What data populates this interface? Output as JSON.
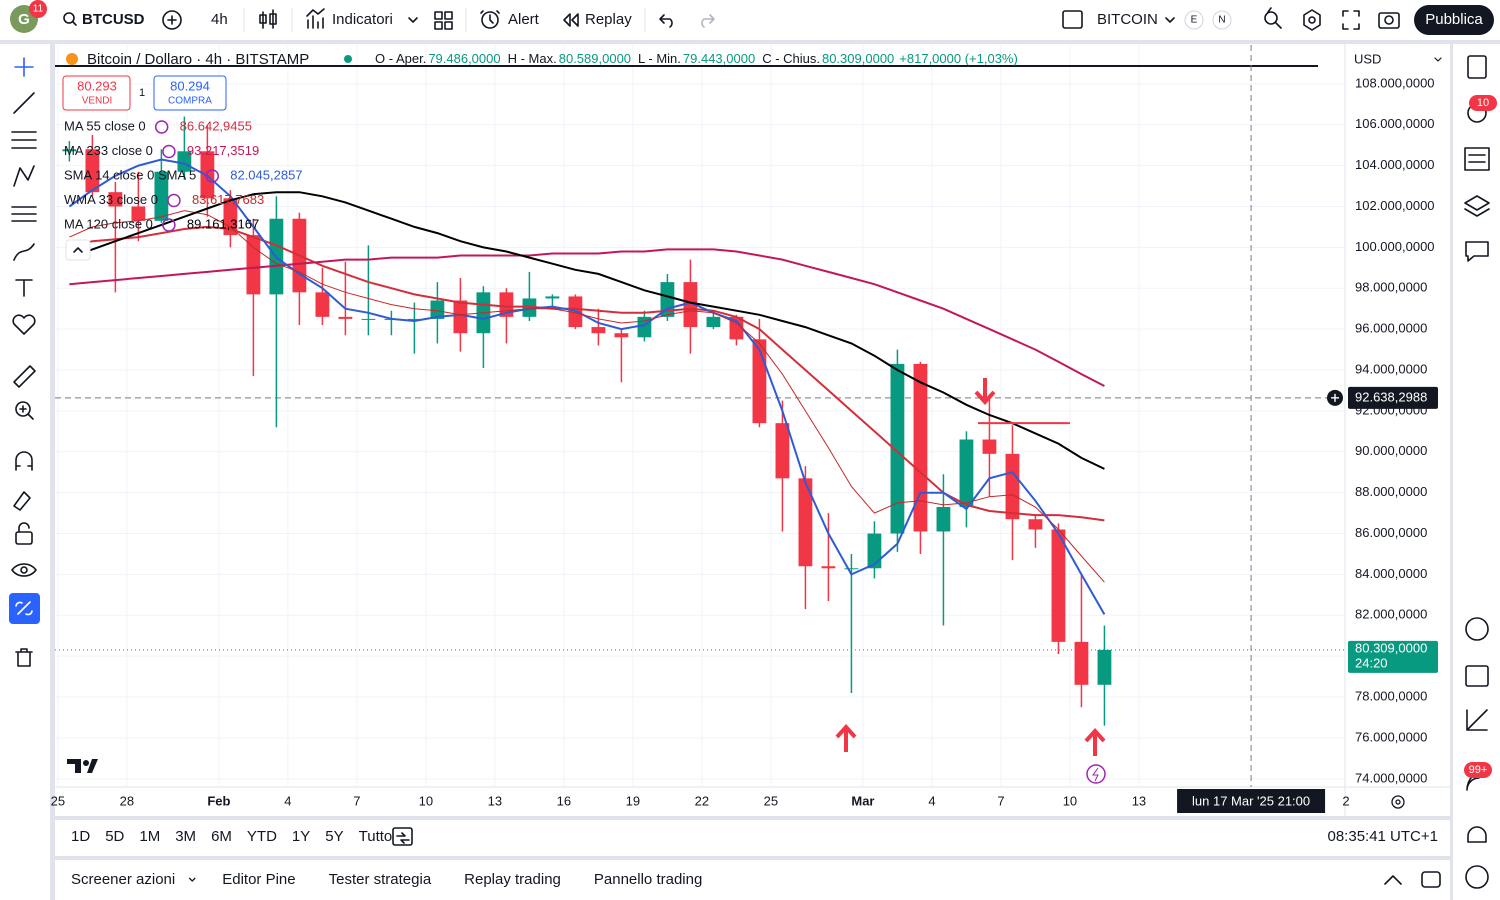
{
  "toolbar": {
    "avatar_badge": "11",
    "symbol": "BTCUSD",
    "interval": "4h",
    "indicators": "Indicatori",
    "alert": "Alert",
    "replay": "Replay",
    "watchlist": "BITCOIN",
    "e": "E",
    "n": "N",
    "publish": "Pubblica"
  },
  "legend": {
    "title": "Bitcoin / Dollaro · 4h · BITSTAMP",
    "ohlc": [
      {
        "label": "O - Aper.",
        "value": "79.486,0000"
      },
      {
        "label": "H - Max.",
        "value": "80.589,0000"
      },
      {
        "label": "L - Min.",
        "value": "79.443,0000"
      },
      {
        "label": "C - Chius.",
        "value": "80.309,0000"
      }
    ],
    "change": "+817,0000 (+1,03%)"
  },
  "trade": {
    "sell_price": "80.293",
    "sell": "VENDI",
    "spread": "1",
    "buy_price": "80.294",
    "buy": "COMPRA"
  },
  "chart_data": {
    "type": "candlestick",
    "currency": "USD",
    "xlim": [
      "2025-01-24T21:00",
      "2025-03-21T23:00"
    ],
    "ylim": [
      73600,
      109900
    ],
    "grid": true,
    "up_color": "#089981",
    "down_color": "#f23645",
    "x": [
      "2025-01-25",
      "2025-01-26",
      "2025-01-27",
      "2025-01-28",
      "2025-01-29",
      "2025-01-30",
      "2025-01-31",
      "2025-02-01",
      "2025-02-02",
      "2025-02-03",
      "2025-02-04",
      "2025-02-05",
      "2025-02-06",
      "2025-02-07",
      "2025-02-08",
      "2025-02-09",
      "2025-02-10",
      "2025-02-11",
      "2025-02-12",
      "2025-02-13",
      "2025-02-14",
      "2025-02-15",
      "2025-02-16",
      "2025-02-17",
      "2025-02-18",
      "2025-02-19",
      "2025-02-20",
      "2025-02-21",
      "2025-02-22",
      "2025-02-23",
      "2025-02-24",
      "2025-02-25",
      "2025-02-26",
      "2025-02-27",
      "2025-02-28",
      "2025-03-01",
      "2025-03-02",
      "2025-03-03",
      "2025-03-04",
      "2025-03-05",
      "2025-03-06",
      "2025-03-07",
      "2025-03-08",
      "2025-03-09",
      "2025-03-10",
      "2025-03-11"
    ],
    "open": [
      104700,
      104800,
      102700,
      102000,
      101300,
      103700,
      104700,
      102400,
      100600,
      97700,
      101400,
      97800,
      96600,
      96500,
      96500,
      96500,
      96500,
      97400,
      95800,
      97800,
      96600,
      97500,
      97600,
      96100,
      95800,
      95600,
      96600,
      98300,
      96100,
      96600,
      95500,
      91400,
      88700,
      84400,
      84300,
      84300,
      86000,
      94300,
      86100,
      87300,
      90600,
      89900,
      86700,
      86200,
      80700,
      78600
    ],
    "high": [
      105200,
      105500,
      103200,
      103700,
      104800,
      106400,
      106000,
      102800,
      101400,
      102500,
      101700,
      99000,
      99300,
      100100,
      96900,
      97300,
      98300,
      98500,
      98100,
      98000,
      98800,
      97700,
      97700,
      97000,
      96000,
      96900,
      98700,
      99400,
      96900,
      96700,
      96500,
      92500,
      89300,
      87000,
      85000,
      86600,
      95000,
      94400,
      88900,
      91000,
      92800,
      91300,
      86900,
      86500,
      84000,
      81500
    ],
    "low": [
      104200,
      102500,
      97800,
      100300,
      101200,
      103300,
      101500,
      100000,
      93700,
      91200,
      96200,
      96200,
      95700,
      95700,
      95700,
      94800,
      95300,
      94900,
      94100,
      95300,
      96400,
      97000,
      96000,
      95200,
      93400,
      95400,
      96400,
      94800,
      96000,
      95200,
      91200,
      86100,
      82300,
      82700,
      78200,
      83800,
      85100,
      85000,
      81500,
      86300,
      87800,
      84700,
      85300,
      80100,
      77500,
      76600
    ],
    "close": [
      104800,
      102700,
      102000,
      101300,
      103700,
      104700,
      102400,
      100600,
      97700,
      101400,
      97800,
      96600,
      96500,
      96500,
      96500,
      96500,
      97400,
      95800,
      97800,
      96600,
      97500,
      97600,
      96100,
      95800,
      95600,
      96600,
      98300,
      96100,
      96600,
      95500,
      91400,
      88700,
      84400,
      84300,
      84300,
      86000,
      94300,
      86100,
      87300,
      90600,
      89900,
      86700,
      86200,
      80700,
      78600,
      80309
    ],
    "series": [
      {
        "name": "MA 55 close 0",
        "legend_value": "86.642,9455",
        "color": "#d32f3a",
        "line_width": 2,
        "values": [
          100000,
          100300,
          100400,
          100500,
          100700,
          100900,
          101000,
          100900,
          100500,
          100100,
          99600,
          99100,
          98700,
          98300,
          98000,
          97700,
          97500,
          97300,
          97200,
          97100,
          97100,
          97000,
          97000,
          96900,
          96800,
          96800,
          96900,
          97000,
          96900,
          96600,
          96000,
          95000,
          94000,
          93000,
          92000,
          91000,
          90000,
          89000,
          88000,
          87400,
          87100,
          87000,
          86900,
          86900,
          86800,
          86643
        ]
      },
      {
        "name": "MA 233 close 0",
        "legend_value": "93.217,3519",
        "color": "#c2185b",
        "line_width": 2,
        "values": [
          98200,
          98300,
          98400,
          98500,
          98600,
          98700,
          98800,
          98900,
          99000,
          99100,
          99200,
          99300,
          99400,
          99400,
          99500,
          99500,
          99500,
          99600,
          99600,
          99600,
          99600,
          99700,
          99700,
          99700,
          99800,
          99800,
          99900,
          99900,
          99900,
          99800,
          99600,
          99400,
          99100,
          98800,
          98500,
          98200,
          97800,
          97400,
          97000,
          96500,
          96000,
          95500,
          95000,
          94400,
          93800,
          93217
        ]
      },
      {
        "name": "SMA 14 close 0 SMA 5",
        "legend_value": "82.045,2857",
        "color": "#2f5bd3",
        "line_width": 2,
        "values": [
          102000,
          102800,
          103500,
          104000,
          104300,
          104100,
          103500,
          102500,
          101000,
          99500,
          98700,
          98000,
          97000,
          96800,
          96500,
          96400,
          96600,
          96700,
          96500,
          96800,
          97000,
          97100,
          96900,
          96300,
          96000,
          96200,
          97000,
          97300,
          96800,
          96400,
          95000,
          92000,
          88500,
          86000,
          84000,
          84500,
          85500,
          88000,
          88000,
          87200,
          88700,
          89000,
          87600,
          86000,
          84000,
          82046
        ]
      },
      {
        "name": "WMA 33 close 0",
        "legend_value": "83.617,7683",
        "color": "#c62828",
        "line_width": 1,
        "values": [
          100500,
          101000,
          101200,
          101300,
          101500,
          101800,
          101600,
          101000,
          100000,
          99200,
          98800,
          98200,
          97800,
          97500,
          97200,
          97000,
          96900,
          96700,
          96800,
          96900,
          97000,
          97000,
          96800,
          96500,
          96300,
          96400,
          96700,
          96900,
          96800,
          96300,
          95300,
          93800,
          92000,
          90200,
          88300,
          87000,
          87500,
          87600,
          87400,
          87500,
          87800,
          87900,
          87300,
          86200,
          84900,
          83618
        ]
      },
      {
        "name": "MA 120 close 0",
        "legend_value": "89.161,3167",
        "color": "#000000",
        "line_width": 2,
        "values": [
          99500,
          99900,
          100300,
          100700,
          101100,
          101500,
          101900,
          102300,
          102600,
          102700,
          102700,
          102500,
          102200,
          101800,
          101400,
          101000,
          100700,
          100300,
          100000,
          99800,
          99500,
          99200,
          98900,
          98700,
          98300,
          97900,
          97600,
          97300,
          97100,
          96900,
          96700,
          96400,
          96100,
          95700,
          95300,
          94700,
          94000,
          93400,
          92900,
          92300,
          91800,
          91400,
          90900,
          90400,
          89700,
          89161
        ]
      }
    ],
    "yticks": [
      {
        "value": 74000,
        "label": "74.000,0000"
      },
      {
        "value": 76000,
        "label": "76.000,0000"
      },
      {
        "value": 78000,
        "label": "78.000,0000"
      },
      {
        "value": 80000,
        "label": "80.000,0000"
      },
      {
        "value": 82000,
        "label": "82.000,0000"
      },
      {
        "value": 84000,
        "label": "84.000,0000"
      },
      {
        "value": 86000,
        "label": "86.000,0000"
      },
      {
        "value": 88000,
        "label": "88.000,0000"
      },
      {
        "value": 90000,
        "label": "90.000,0000"
      },
      {
        "value": 92000,
        "label": "92.000,0000"
      },
      {
        "value": 94000,
        "label": "94.000,0000"
      },
      {
        "value": 96000,
        "label": "96.000,0000"
      },
      {
        "value": 98000,
        "label": "98.000,0000"
      },
      {
        "value": 100000,
        "label": "100.000,0000"
      },
      {
        "value": 102000,
        "label": "102.000,0000"
      },
      {
        "value": 104000,
        "label": "104.000,0000"
      },
      {
        "value": 106000,
        "label": "106.000,0000"
      },
      {
        "value": 108000,
        "label": "108.000,0000"
      }
    ],
    "xticks": [
      {
        "value": "2025-01-25",
        "label": "25"
      },
      {
        "value": "2025-01-28",
        "label": "28"
      },
      {
        "value": "2025-02-01",
        "label": "Feb"
      },
      {
        "value": "2025-02-04",
        "label": "4"
      },
      {
        "value": "2025-02-07",
        "label": "7"
      },
      {
        "value": "2025-02-10",
        "label": "10"
      },
      {
        "value": "2025-02-13",
        "label": "13"
      },
      {
        "value": "2025-02-16",
        "label": "16"
      },
      {
        "value": "2025-02-19",
        "label": "19"
      },
      {
        "value": "2025-02-22",
        "label": "22"
      },
      {
        "value": "2025-02-25",
        "label": "25"
      },
      {
        "value": "2025-03-01",
        "label": "Mar"
      },
      {
        "value": "2025-03-04",
        "label": "4"
      },
      {
        "value": "2025-03-07",
        "label": "7"
      },
      {
        "value": "2025-03-10",
        "label": "10"
      },
      {
        "value": "2025-03-13",
        "label": "13"
      },
      {
        "value": "2025-03-22",
        "label": "2"
      }
    ],
    "last_price": {
      "value": 80309,
      "label": "80.309,0000",
      "countdown": "24:20"
    },
    "crosshair": {
      "price": 92638.2988,
      "price_label": "92.638,2988",
      "time": "2025-03-17T21:00",
      "time_label": "lun 17 Mar '25 21:00"
    },
    "resistance": {
      "value": 91400,
      "from": "2025-03-06",
      "to": "2025-03-10"
    }
  },
  "ranges": [
    "1D",
    "5D",
    "1M",
    "3M",
    "6M",
    "YTD",
    "1Y",
    "5Y",
    "Tutto"
  ],
  "clock": "08:35:41 UTC+1",
  "bottom_tabs": [
    "Screener azioni",
    "Editor Pine",
    "Tester strategia",
    "Replay trading",
    "Pannello trading"
  ],
  "sidebar_badges": [
    "10",
    "99+"
  ]
}
